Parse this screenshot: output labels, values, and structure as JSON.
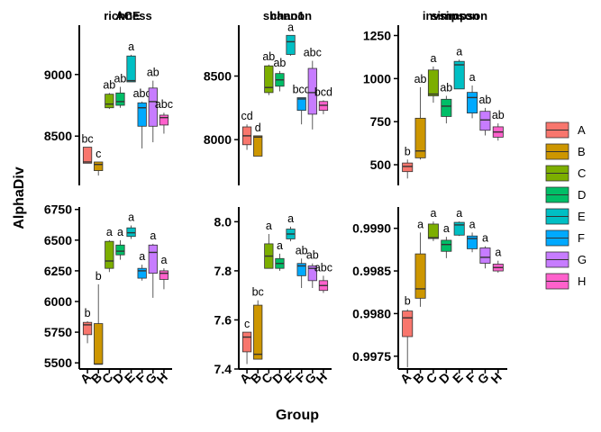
{
  "chart_data": {
    "type": "boxplot-facets",
    "ylabel": "AlphaDiv",
    "xlabel": "Group",
    "groups": [
      "A",
      "B",
      "C",
      "D",
      "E",
      "F",
      "G",
      "H"
    ],
    "colors": [
      "#F8766D",
      "#CD9600",
      "#7CAE00",
      "#00BE67",
      "#00BFC4",
      "#00A9FF",
      "#C77CFF",
      "#FF61CC"
    ],
    "legend": {
      "position": "right",
      "entries": [
        "A",
        "B",
        "C",
        "D",
        "E",
        "F",
        "G",
        "H"
      ]
    },
    "panels": [
      {
        "title": "ACE",
        "ylim": [
          8100,
          9400
        ],
        "yticks": [
          8500,
          9000
        ],
        "tick_labels": [
          "8500",
          "9000"
        ],
        "boxes": [
          {
            "group": "A",
            "min": 8280,
            "q1": 8280,
            "median": 8290,
            "q3": 8410,
            "max": 8410,
            "label": "bc"
          },
          {
            "group": "B",
            "min": 8180,
            "q1": 8220,
            "median": 8270,
            "q3": 8290,
            "max": 8290,
            "label": "c"
          },
          {
            "group": "C",
            "min": 8720,
            "q1": 8730,
            "median": 8760,
            "q3": 8840,
            "max": 8850,
            "label": "ab"
          },
          {
            "group": "D",
            "min": 8730,
            "q1": 8750,
            "median": 8780,
            "q3": 8850,
            "max": 8900,
            "label": "ab"
          },
          {
            "group": "E",
            "min": 8940,
            "q1": 8940,
            "median": 8950,
            "q3": 9150,
            "max": 9160,
            "label": "a"
          },
          {
            "group": "F",
            "min": 8400,
            "q1": 8580,
            "median": 8730,
            "q3": 8770,
            "max": 8780,
            "label": "abc"
          },
          {
            "group": "G",
            "min": 8450,
            "q1": 8580,
            "median": 8780,
            "q3": 8890,
            "max": 8950,
            "label": "ab"
          },
          {
            "group": "H",
            "min": 8520,
            "q1": 8590,
            "median": 8650,
            "q3": 8670,
            "max": 8690,
            "label": "abc"
          }
        ]
      },
      {
        "title": "chao1",
        "ylim": [
          7640,
          8900
        ],
        "yticks": [
          8000,
          8500
        ],
        "tick_labels": [
          "8000",
          "8500"
        ],
        "boxes": [
          {
            "group": "A",
            "min": 7920,
            "q1": 7960,
            "median": 8030,
            "q3": 8100,
            "max": 8120,
            "label": "cd"
          },
          {
            "group": "B",
            "min": 7870,
            "q1": 7870,
            "median": 8020,
            "q3": 8030,
            "max": 8030,
            "label": "d"
          },
          {
            "group": "C",
            "min": 8350,
            "q1": 8370,
            "median": 8410,
            "q3": 8580,
            "max": 8590,
            "label": "ab"
          },
          {
            "group": "D",
            "min": 8380,
            "q1": 8420,
            "median": 8470,
            "q3": 8520,
            "max": 8540,
            "label": "ab"
          },
          {
            "group": "E",
            "min": 8660,
            "q1": 8670,
            "median": 8770,
            "q3": 8820,
            "max": 8820,
            "label": "a"
          },
          {
            "group": "F",
            "min": 8120,
            "q1": 8230,
            "median": 8320,
            "q3": 8330,
            "max": 8330,
            "label": "bcd"
          },
          {
            "group": "G",
            "min": 8080,
            "q1": 8200,
            "median": 8370,
            "q3": 8560,
            "max": 8620,
            "label": "abc"
          },
          {
            "group": "H",
            "min": 8200,
            "q1": 8230,
            "median": 8270,
            "q3": 8300,
            "max": 8310,
            "label": "bcd"
          }
        ]
      },
      {
        "title": "invsimpson",
        "ylim": [
          380,
          1310
        ],
        "yticks": [
          500,
          750,
          1000,
          1250
        ],
        "tick_labels": [
          "500",
          "750",
          "1000",
          "1250"
        ],
        "boxes": [
          {
            "group": "A",
            "min": 420,
            "q1": 460,
            "median": 490,
            "q3": 510,
            "max": 530,
            "label": "b"
          },
          {
            "group": "B",
            "min": 530,
            "q1": 540,
            "median": 580,
            "q3": 770,
            "max": 950,
            "label": "ab"
          },
          {
            "group": "C",
            "min": 860,
            "q1": 900,
            "median": 910,
            "q3": 1050,
            "max": 1070,
            "label": "a"
          },
          {
            "group": "D",
            "min": 740,
            "q1": 780,
            "median": 840,
            "q3": 880,
            "max": 900,
            "label": "ab"
          },
          {
            "group": "E",
            "min": 940,
            "q1": 940,
            "median": 1080,
            "q3": 1100,
            "max": 1110,
            "label": "a"
          },
          {
            "group": "F",
            "min": 770,
            "q1": 800,
            "median": 890,
            "q3": 920,
            "max": 960,
            "label": "a"
          },
          {
            "group": "G",
            "min": 670,
            "q1": 700,
            "median": 760,
            "q3": 810,
            "max": 830,
            "label": "ab"
          },
          {
            "group": "H",
            "min": 640,
            "q1": 660,
            "median": 690,
            "q3": 720,
            "max": 740,
            "label": "ab"
          }
        ]
      },
      {
        "title": "richness",
        "ylim": [
          5450,
          6770
        ],
        "yticks": [
          5500,
          5750,
          6000,
          6250,
          6500,
          6750
        ],
        "tick_labels": [
          "5500",
          "5750",
          "6000",
          "6250",
          "6500",
          "6750"
        ],
        "boxes": [
          {
            "group": "A",
            "min": 5660,
            "q1": 5730,
            "median": 5810,
            "q3": 5830,
            "max": 5840,
            "label": "b"
          },
          {
            "group": "B",
            "min": 5490,
            "q1": 5490,
            "median": 5490,
            "q3": 5820,
            "max": 6140,
            "label": "b"
          },
          {
            "group": "C",
            "min": 6240,
            "q1": 6270,
            "median": 6330,
            "q3": 6490,
            "max": 6500,
            "label": "a"
          },
          {
            "group": "D",
            "min": 6340,
            "q1": 6380,
            "median": 6410,
            "q3": 6460,
            "max": 6500,
            "label": "a"
          },
          {
            "group": "E",
            "min": 6510,
            "q1": 6530,
            "median": 6560,
            "q3": 6600,
            "max": 6620,
            "label": "a"
          },
          {
            "group": "F",
            "min": 6170,
            "q1": 6190,
            "median": 6250,
            "q3": 6270,
            "max": 6300,
            "label": "a"
          },
          {
            "group": "G",
            "min": 6030,
            "q1": 6230,
            "median": 6400,
            "q3": 6460,
            "max": 6470,
            "label": "a"
          },
          {
            "group": "H",
            "min": 6100,
            "q1": 6180,
            "median": 6230,
            "q3": 6250,
            "max": 6270,
            "label": "a"
          }
        ]
      },
      {
        "title": "shannon",
        "ylim": [
          7.4,
          8.06
        ],
        "yticks": [
          7.4,
          7.6,
          7.8,
          8.0
        ],
        "tick_labels": [
          "7.4",
          "7.6",
          "7.8",
          "8.0"
        ],
        "boxes": [
          {
            "group": "A",
            "min": 7.42,
            "q1": 7.47,
            "median": 7.53,
            "q3": 7.55,
            "max": 7.55,
            "label": "c"
          },
          {
            "group": "B",
            "min": 7.44,
            "q1": 7.44,
            "median": 7.46,
            "q3": 7.66,
            "max": 7.68,
            "label": "bc"
          },
          {
            "group": "C",
            "min": 7.81,
            "q1": 7.81,
            "median": 7.86,
            "q3": 7.91,
            "max": 7.95,
            "label": "a"
          },
          {
            "group": "D",
            "min": 7.8,
            "q1": 7.81,
            "median": 7.83,
            "q3": 7.85,
            "max": 7.87,
            "label": "a"
          },
          {
            "group": "E",
            "min": 7.92,
            "q1": 7.93,
            "median": 7.95,
            "q3": 7.97,
            "max": 7.98,
            "label": "a"
          },
          {
            "group": "F",
            "min": 7.73,
            "q1": 7.78,
            "median": 7.82,
            "q3": 7.83,
            "max": 7.85,
            "label": "ab"
          },
          {
            "group": "G",
            "min": 7.73,
            "q1": 7.76,
            "median": 7.81,
            "q3": 7.82,
            "max": 7.83,
            "label": "ab"
          },
          {
            "group": "H",
            "min": 7.71,
            "q1": 7.72,
            "median": 7.74,
            "q3": 7.76,
            "max": 7.78,
            "label": "abc"
          }
        ]
      },
      {
        "title": "simpson",
        "ylim": [
          0.99735,
          0.99925
        ],
        "yticks": [
          0.9975,
          0.998,
          0.9985,
          0.999
        ],
        "tick_labels": [
          "0.9975",
          "0.9980",
          "0.9985",
          "0.9990"
        ],
        "boxes": [
          {
            "group": "A",
            "min": 0.99737,
            "q1": 0.99773,
            "median": 0.99795,
            "q3": 0.99803,
            "max": 0.99805,
            "label": "b"
          },
          {
            "group": "B",
            "min": 0.99808,
            "q1": 0.99818,
            "median": 0.99829,
            "q3": 0.9987,
            "max": 0.99895,
            "label": "a"
          },
          {
            "group": "C",
            "min": 0.99885,
            "q1": 0.99888,
            "median": 0.99889,
            "q3": 0.99905,
            "max": 0.99908,
            "label": "a"
          },
          {
            "group": "D",
            "min": 0.99865,
            "q1": 0.99873,
            "median": 0.99881,
            "q3": 0.99886,
            "max": 0.9989,
            "label": "a"
          },
          {
            "group": "E",
            "min": 0.99891,
            "q1": 0.99892,
            "median": 0.99904,
            "q3": 0.99907,
            "max": 0.99908,
            "label": "a"
          },
          {
            "group": "F",
            "min": 0.99872,
            "q1": 0.99876,
            "median": 0.99888,
            "q3": 0.99891,
            "max": 0.99895,
            "label": "a"
          },
          {
            "group": "G",
            "min": 0.99853,
            "q1": 0.99859,
            "median": 0.99866,
            "q3": 0.99877,
            "max": 0.99879,
            "label": "a"
          },
          {
            "group": "H",
            "min": 0.99848,
            "q1": 0.9985,
            "median": 0.99854,
            "q3": 0.99858,
            "max": 0.99862,
            "label": "a"
          }
        ]
      }
    ]
  }
}
